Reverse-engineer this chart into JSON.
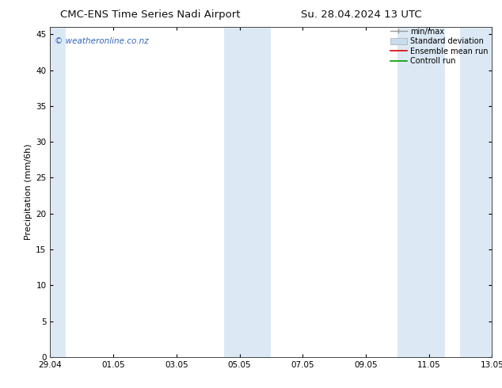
{
  "title_left": "CMC-ENS Time Series Nadi Airport",
  "title_right": "Su. 28.04.2024 13 UTC",
  "ylabel": "Precipitation (mm/6h)",
  "ylim": [
    0,
    46
  ],
  "yticks": [
    0,
    5,
    10,
    15,
    20,
    25,
    30,
    35,
    40,
    45
  ],
  "x_tick_labels": [
    "29.04",
    "01.05",
    "03.05",
    "05.05",
    "07.05",
    "09.05",
    "11.05",
    "13.05"
  ],
  "x_tick_positions": [
    0,
    2,
    4,
    6,
    8,
    10,
    12,
    14
  ],
  "x_total": 14,
  "blue_bands": [
    [
      -0.05,
      0.5
    ],
    [
      5.5,
      7.0
    ],
    [
      11.0,
      12.5
    ],
    [
      13.0,
      14.05
    ]
  ],
  "band_color": "#dce9f5",
  "background_color": "#ffffff",
  "watermark": "© weatheronline.co.nz",
  "watermark_color": "#3366bb",
  "legend_labels": [
    "min/max",
    "Standard deviation",
    "Ensemble mean run",
    "Controll run"
  ],
  "legend_colors": [
    "#999999",
    "#c8dced",
    "#dd0000",
    "#009900"
  ],
  "title_fontsize": 9.5,
  "ylabel_fontsize": 8,
  "tick_fontsize": 7.5,
  "legend_fontsize": 7,
  "watermark_fontsize": 7.5
}
